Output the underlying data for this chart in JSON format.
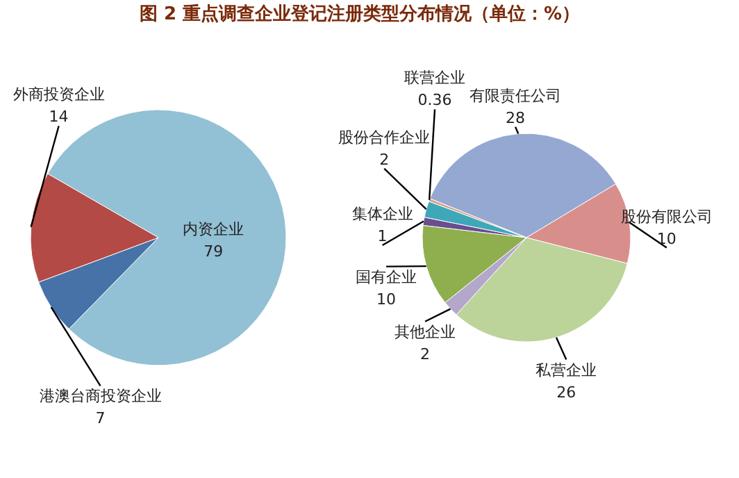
{
  "chart_data": [
    {
      "type": "pie",
      "title": "图 2 重点调查企业登记注册类型分布情况（单位：%）",
      "categories": [
        "内资企业",
        "港澳台商投资企业",
        "外商投资企业"
      ],
      "values": [
        79,
        7,
        14
      ],
      "colors": [
        "#92c0d4",
        "#4672a8",
        "#b34a45"
      ],
      "data_labels": true
    },
    {
      "type": "pie",
      "categories": [
        "有限责任公司",
        "股份有限公司",
        "私营企业",
        "其他企业",
        "国有企业",
        "集体企业",
        "股份合作企业",
        "联营企业"
      ],
      "values": [
        28,
        10,
        26,
        2,
        10,
        1,
        2,
        0.36
      ],
      "colors": [
        "#94a8d2",
        "#d88f8c",
        "#bcd39a",
        "#b3a7cc",
        "#8faf4e",
        "#6a4e8e",
        "#3fa8b8",
        "#d4a48a"
      ],
      "data_labels": true
    }
  ]
}
